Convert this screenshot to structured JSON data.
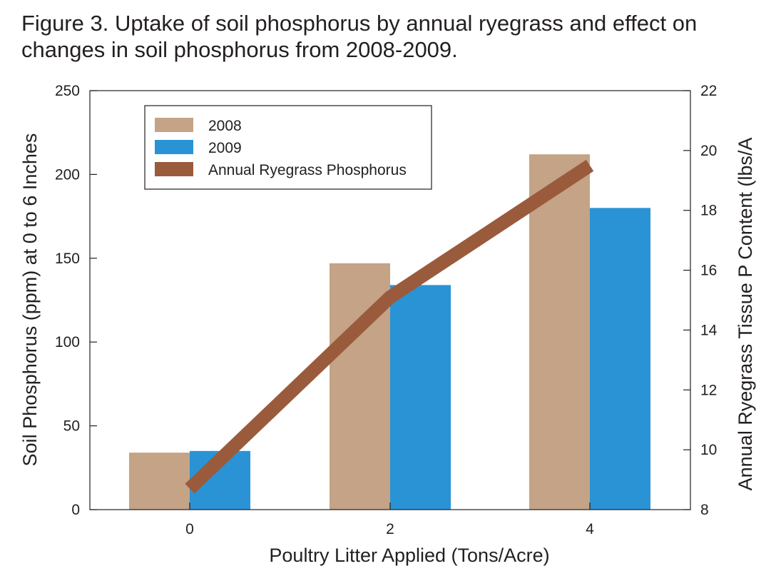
{
  "title_lines": [
    "Figure 3.  Uptake of soil phosphorus by annual ryegrass and effect on",
    "changes in soil phosphorus from 2008-2009."
  ],
  "chart_data": {
    "type": "bar",
    "categories": [
      "0",
      "2",
      "4"
    ],
    "xlabel": "Poultry Litter Applied (Tons/Acre)",
    "ylabel": "Soil Phosphorus (ppm) at 0 to 6 Inches",
    "y2label": "Annual Ryegrass Tissue P Content (lbs/A",
    "ylim": [
      0,
      250
    ],
    "y2lim": [
      8,
      22
    ],
    "yticks": [
      "0",
      "50",
      "100",
      "150",
      "200",
      "250"
    ],
    "y2ticks": [
      "8",
      "10",
      "12",
      "14",
      "16",
      "18",
      "20",
      "22"
    ],
    "series": [
      {
        "name": "2008",
        "type": "bar",
        "axis": "left",
        "color": "#c4a386",
        "values": [
          34,
          147,
          212
        ]
      },
      {
        "name": "2009",
        "type": "bar",
        "axis": "left",
        "color": "#2a93d5",
        "values": [
          35,
          134,
          180
        ]
      },
      {
        "name": "Annual Ryegrass Phosphorus",
        "type": "line",
        "axis": "right",
        "color": "#9a5b3c",
        "x": [
          0,
          2,
          4
        ],
        "values": [
          8.7,
          15.1,
          19.5
        ]
      }
    ],
    "legend_position": "top-left",
    "grid": false
  }
}
